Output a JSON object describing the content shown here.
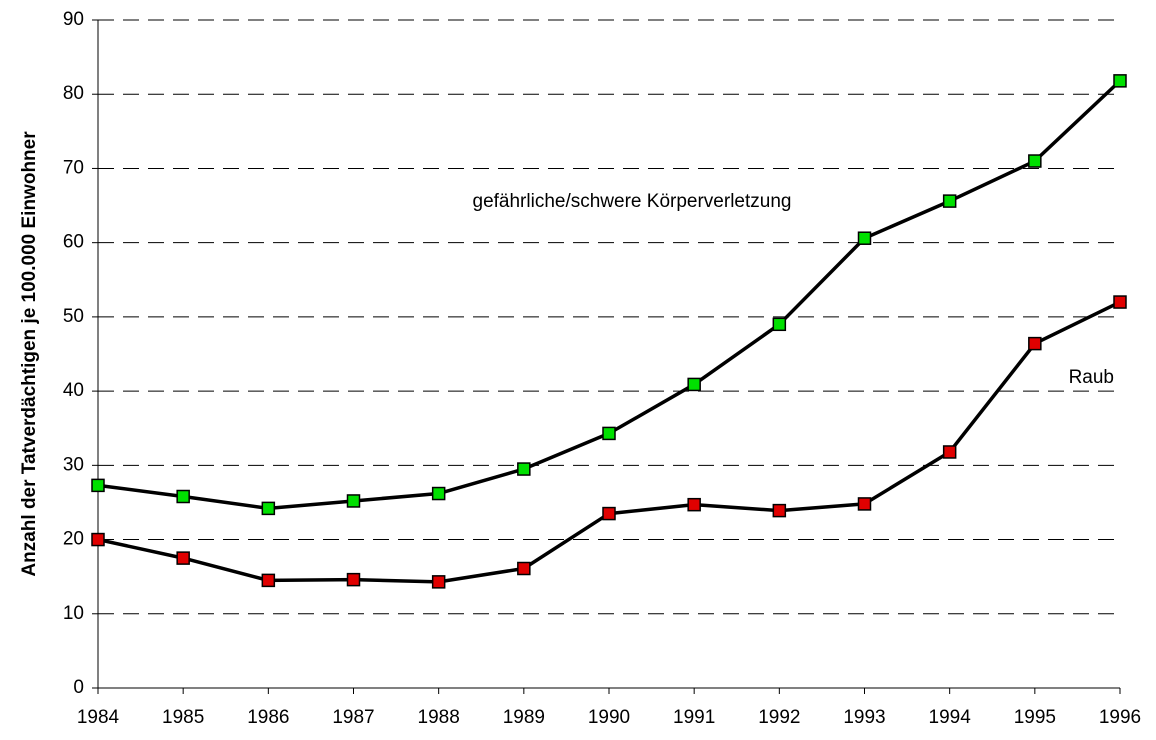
{
  "chart_data": {
    "type": "line",
    "y_label": "Anzahl der Tatverdächtigen je 100.000 Einwohner",
    "x": [
      1984,
      1985,
      1986,
      1987,
      1988,
      1989,
      1990,
      1991,
      1992,
      1993,
      1994,
      1995,
      1996
    ],
    "series": [
      {
        "name": "gefährliche/schwere Körperverletzung",
        "color": "#00e000",
        "values": [
          27.3,
          25.8,
          24.2,
          25.2,
          26.2,
          29.5,
          34.3,
          40.9,
          49.0,
          60.6,
          65.6,
          71.0,
          81.8
        ]
      },
      {
        "name": "Raub",
        "color": "#e00000",
        "values": [
          20.0,
          17.5,
          14.5,
          14.6,
          14.3,
          16.1,
          23.5,
          24.7,
          23.9,
          24.8,
          31.8,
          46.4,
          52.0
        ]
      }
    ],
    "xlim": [
      1984,
      1996
    ],
    "xticks": [
      1984,
      1985,
      1986,
      1987,
      1988,
      1989,
      1990,
      1991,
      1992,
      1993,
      1994,
      1995,
      1996
    ],
    "ylim": [
      0,
      90
    ],
    "yticks": [
      0,
      10,
      20,
      30,
      40,
      50,
      60,
      70,
      80,
      90
    ],
    "grid": true
  }
}
